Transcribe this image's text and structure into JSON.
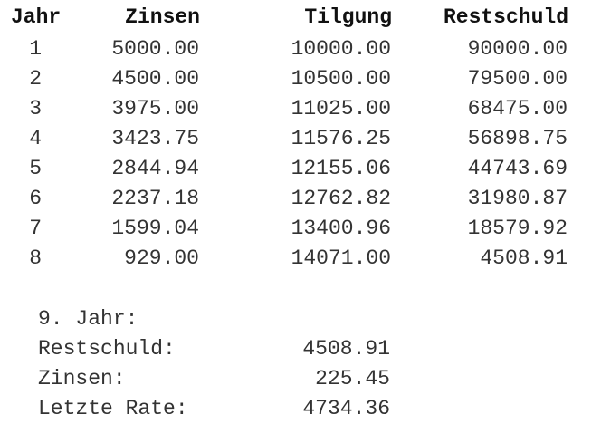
{
  "table": {
    "headers": {
      "year": "Jahr",
      "zinsen": "Zinsen",
      "tilgung": "Tilgung",
      "restschuld": "Restschuld"
    },
    "rows": [
      {
        "year": "1",
        "zinsen": "5000.00",
        "tilgung": "10000.00",
        "restschuld": "90000.00"
      },
      {
        "year": "2",
        "zinsen": "4500.00",
        "tilgung": "10500.00",
        "restschuld": "79500.00"
      },
      {
        "year": "3",
        "zinsen": "3975.00",
        "tilgung": "11025.00",
        "restschuld": "68475.00"
      },
      {
        "year": "4",
        "zinsen": "3423.75",
        "tilgung": "11576.25",
        "restschuld": "56898.75"
      },
      {
        "year": "5",
        "zinsen": "2844.94",
        "tilgung": "12155.06",
        "restschuld": "44743.69"
      },
      {
        "year": "6",
        "zinsen": "2237.18",
        "tilgung": "12762.82",
        "restschuld": "31980.87"
      },
      {
        "year": "7",
        "zinsen": "1599.04",
        "tilgung": "13400.96",
        "restschuld": "18579.92"
      },
      {
        "year": "8",
        "zinsen": "929.00",
        "tilgung": "14071.00",
        "restschuld": "4508.91"
      }
    ]
  },
  "summary": {
    "heading": "9. Jahr:",
    "items": [
      {
        "label": "Restschuld:",
        "value": "4508.91"
      },
      {
        "label": "Zinsen:",
        "value": "225.45"
      },
      {
        "label": "Letzte Rate:",
        "value": "4734.36"
      }
    ]
  }
}
